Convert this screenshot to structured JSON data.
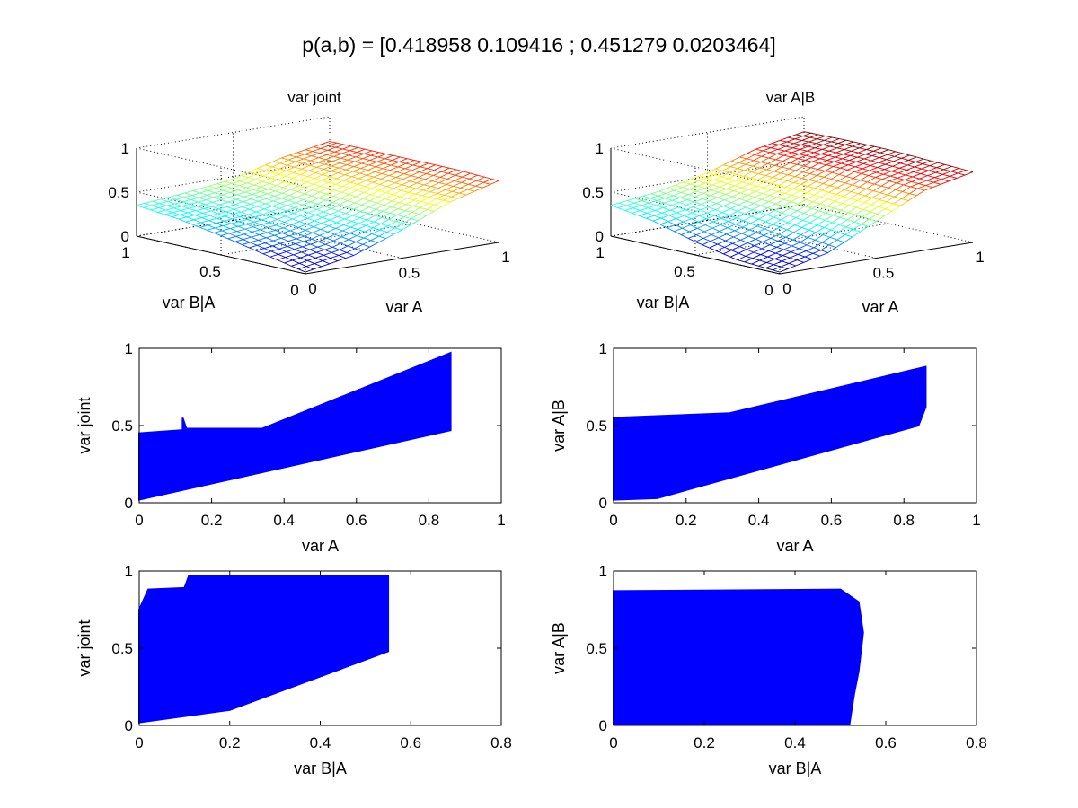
{
  "figure": {
    "suptitle": "p(a,b) = [0.418958 0.109416 ; 0.451279 0.0203464]"
  },
  "chart_data": [
    {
      "type": "surface",
      "title": "var joint",
      "xlabel": "var A",
      "ylabel": "var B|A",
      "x_ticks": [
        "0",
        "0.5",
        "1"
      ],
      "y_ticks": [
        "0",
        "0.5",
        "1"
      ],
      "z_ticks": [
        "0",
        "0.5",
        "1"
      ],
      "xlim": [
        0,
        1
      ],
      "ylim": [
        0,
        1
      ],
      "zlim": [
        0,
        1
      ],
      "colormap": "jet",
      "grid": true,
      "surface": {
        "x": [
          0,
          0.25,
          0.5,
          0.75,
          1
        ],
        "y": [
          0,
          0.25,
          0.5,
          0.75,
          1
        ],
        "z": [
          [
            0.02,
            0.12,
            0.32,
            0.55,
            0.7
          ],
          [
            0.12,
            0.2,
            0.35,
            0.55,
            0.72
          ],
          [
            0.22,
            0.28,
            0.4,
            0.58,
            0.72
          ],
          [
            0.3,
            0.35,
            0.44,
            0.6,
            0.72
          ],
          [
            0.35,
            0.4,
            0.47,
            0.62,
            0.72
          ]
        ]
      }
    },
    {
      "type": "surface",
      "title": "var A|B",
      "xlabel": "var A",
      "ylabel": "var B|A",
      "x_ticks": [
        "0",
        "0.5",
        "1"
      ],
      "y_ticks": [
        "0",
        "0.5",
        "1"
      ],
      "z_ticks": [
        "0",
        "0.5",
        "1"
      ],
      "xlim": [
        0,
        1
      ],
      "ylim": [
        0,
        1
      ],
      "zlim": [
        0,
        1
      ],
      "colormap": "jet",
      "grid": true,
      "surface": {
        "x": [
          0,
          0.25,
          0.5,
          0.75,
          1
        ],
        "y": [
          0,
          0.25,
          0.5,
          0.75,
          1
        ],
        "z": [
          [
            0.02,
            0.15,
            0.42,
            0.68,
            0.8
          ],
          [
            0.05,
            0.22,
            0.46,
            0.7,
            0.82
          ],
          [
            0.15,
            0.3,
            0.5,
            0.72,
            0.84
          ],
          [
            0.28,
            0.38,
            0.52,
            0.72,
            0.84
          ],
          [
            0.35,
            0.42,
            0.54,
            0.72,
            0.83
          ]
        ]
      }
    },
    {
      "type": "scatter",
      "xlabel": "var A",
      "ylabel": "var joint",
      "xlim": [
        0,
        1
      ],
      "ylim": [
        0,
        1
      ],
      "x_ticks": [
        "0",
        "0.2",
        "0.4",
        "0.6",
        "0.8",
        "1"
      ],
      "y_ticks": [
        "0",
        "0.5",
        "1"
      ],
      "marker_color": "#0000ff",
      "region_upper": [
        [
          0,
          0.45
        ],
        [
          0.12,
          0.47
        ],
        [
          0.12,
          0.55
        ],
        [
          0.13,
          0.48
        ],
        [
          0.34,
          0.48
        ],
        [
          0.86,
          0.97
        ]
      ],
      "region_lower": [
        [
          0,
          0.02
        ],
        [
          0.86,
          0.47
        ]
      ]
    },
    {
      "type": "scatter",
      "xlabel": "var A",
      "ylabel": "var A|B",
      "xlim": [
        0,
        1
      ],
      "ylim": [
        0,
        1
      ],
      "x_ticks": [
        "0",
        "0.2",
        "0.4",
        "0.6",
        "0.8",
        "1"
      ],
      "y_ticks": [
        "0",
        "0.5",
        "1"
      ],
      "marker_color": "#0000ff",
      "region_upper": [
        [
          0,
          0.55
        ],
        [
          0.32,
          0.58
        ],
        [
          0.86,
          0.88
        ]
      ],
      "region_lower": [
        [
          0,
          0.02
        ],
        [
          0.12,
          0.03
        ],
        [
          0.84,
          0.5
        ],
        [
          0.86,
          0.62
        ]
      ]
    },
    {
      "type": "scatter",
      "xlabel": "var B|A",
      "ylabel": "var joint",
      "xlim": [
        0,
        0.8
      ],
      "ylim": [
        0,
        1
      ],
      "x_ticks": [
        "0",
        "0.2",
        "0.4",
        "0.6",
        "0.8"
      ],
      "y_ticks": [
        "0",
        "0.5",
        "1"
      ],
      "marker_color": "#0000ff",
      "region_upper": [
        [
          0,
          0.75
        ],
        [
          0.02,
          0.88
        ],
        [
          0.1,
          0.89
        ],
        [
          0.11,
          0.97
        ],
        [
          0.55,
          0.97
        ]
      ],
      "region_lower": [
        [
          0,
          0.02
        ],
        [
          0.2,
          0.1
        ],
        [
          0.55,
          0.48
        ]
      ]
    },
    {
      "type": "scatter",
      "xlabel": "var B|A",
      "ylabel": "var A|B",
      "xlim": [
        0,
        0.8
      ],
      "ylim": [
        0,
        1
      ],
      "x_ticks": [
        "0",
        "0.2",
        "0.4",
        "0.6",
        "0.8"
      ],
      "y_ticks": [
        "0",
        "0.5",
        "1"
      ],
      "marker_color": "#0000ff",
      "region_upper": [
        [
          0,
          0.87
        ],
        [
          0.5,
          0.88
        ],
        [
          0.54,
          0.8
        ],
        [
          0.55,
          0.6
        ],
        [
          0.54,
          0.35
        ],
        [
          0.53,
          0.2
        ],
        [
          0.52,
          0.01
        ]
      ],
      "region_lower": [
        [
          0,
          0.01
        ],
        [
          0.52,
          0.01
        ]
      ]
    }
  ]
}
